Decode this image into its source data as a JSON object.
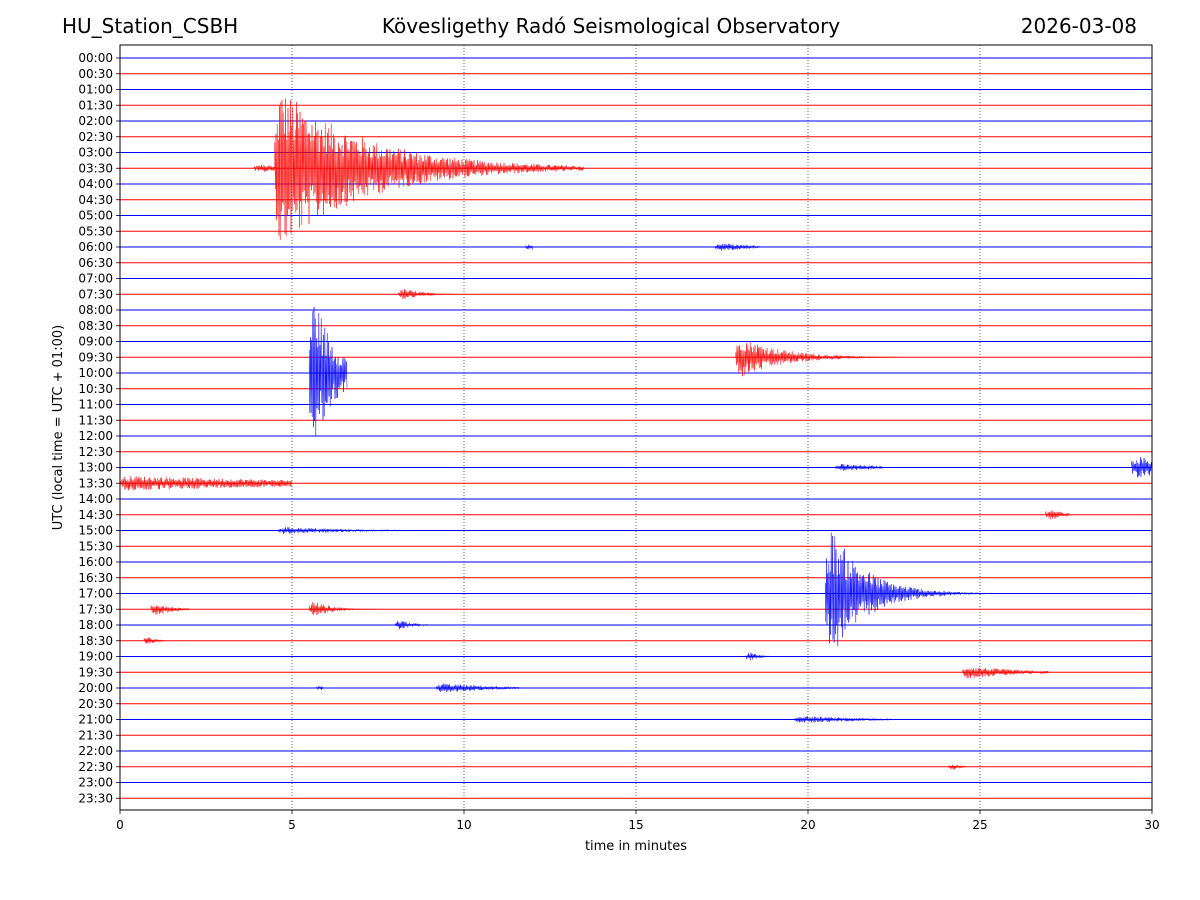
{
  "header": {
    "station": "HU_Station_CSBH",
    "observatory": "Kövesligethy Radó Seismological Observatory",
    "date": "2026-03-08"
  },
  "chart_data": {
    "type": "line",
    "title": "Kövesligethy Radó Seismological Observatory",
    "xlabel": "time in minutes",
    "ylabel": "UTC (local time = UTC + 01:00)",
    "xlim": [
      0,
      30
    ],
    "xticks": [
      0,
      5,
      10,
      15,
      20,
      25,
      30
    ],
    "vertical_gridlines_at": [
      5,
      10,
      15,
      20,
      25
    ],
    "row_colors": [
      "#0000ff",
      "#ff0000"
    ],
    "rows": [
      "00:00",
      "00:30",
      "01:00",
      "01:30",
      "02:00",
      "02:30",
      "03:00",
      "03:30",
      "04:00",
      "04:30",
      "05:00",
      "05:30",
      "06:00",
      "06:30",
      "07:00",
      "07:30",
      "08:00",
      "08:30",
      "09:00",
      "09:30",
      "10:00",
      "10:30",
      "11:00",
      "11:30",
      "12:00",
      "12:30",
      "13:00",
      "13:30",
      "14:00",
      "14:30",
      "15:00",
      "15:30",
      "16:00",
      "16:30",
      "17:00",
      "17:30",
      "18:00",
      "18:30",
      "19:00",
      "19:30",
      "20:00",
      "20:30",
      "21:00",
      "21:30",
      "22:00",
      "22:30",
      "23:00",
      "23:30"
    ],
    "events": [
      {
        "row": "03:30",
        "start": 4.5,
        "end": 13.5,
        "amplitude": 5.5,
        "decay": 2.5
      },
      {
        "row": "03:30",
        "start": 3.9,
        "end": 4.5,
        "amplitude": 0.3,
        "decay": 1.0
      },
      {
        "row": "06:00",
        "start": 11.8,
        "end": 12.0,
        "amplitude": 0.25,
        "decay": 0.5
      },
      {
        "row": "06:00",
        "start": 17.3,
        "end": 18.6,
        "amplitude": 0.3,
        "decay": 1.0
      },
      {
        "row": "07:30",
        "start": 8.1,
        "end": 9.7,
        "amplitude": 0.45,
        "decay": 0.6
      },
      {
        "row": "09:30",
        "start": 17.9,
        "end": 22.6,
        "amplitude": 1.5,
        "decay": 1.2
      },
      {
        "row": "10:00",
        "start": 5.5,
        "end": 6.6,
        "amplitude": 6.5,
        "decay": 0.6
      },
      {
        "row": "13:00",
        "start": 20.8,
        "end": 22.2,
        "amplitude": 0.25,
        "decay": 1.5
      },
      {
        "row": "13:00",
        "start": 29.4,
        "end": 30.0,
        "amplitude": 0.9,
        "decay": 1.0
      },
      {
        "row": "13:30",
        "start": 0.0,
        "end": 5.0,
        "amplitude": 0.5,
        "decay": 6.0
      },
      {
        "row": "14:30",
        "start": 26.9,
        "end": 27.6,
        "amplitude": 0.55,
        "decay": 0.4
      },
      {
        "row": "15:00",
        "start": 4.6,
        "end": 8.2,
        "amplitude": 0.25,
        "decay": 2.0
      },
      {
        "row": "17:00",
        "start": 20.5,
        "end": 26.5,
        "amplitude": 5.0,
        "decay": 1.0
      },
      {
        "row": "17:30",
        "start": 0.9,
        "end": 2.0,
        "amplitude": 0.55,
        "decay": 0.5
      },
      {
        "row": "17:30",
        "start": 5.5,
        "end": 7.5,
        "amplitude": 0.7,
        "decay": 0.5
      },
      {
        "row": "18:00",
        "start": 8.0,
        "end": 9.0,
        "amplitude": 0.45,
        "decay": 0.4
      },
      {
        "row": "18:30",
        "start": 0.7,
        "end": 1.3,
        "amplitude": 0.35,
        "decay": 0.3
      },
      {
        "row": "19:00",
        "start": 18.2,
        "end": 18.9,
        "amplitude": 0.4,
        "decay": 0.3
      },
      {
        "row": "19:30",
        "start": 24.5,
        "end": 27.0,
        "amplitude": 0.45,
        "decay": 1.5
      },
      {
        "row": "20:00",
        "start": 9.2,
        "end": 11.6,
        "amplitude": 0.35,
        "decay": 1.5
      },
      {
        "row": "20:00",
        "start": 5.7,
        "end": 5.9,
        "amplitude": 0.2,
        "decay": 0.5
      },
      {
        "row": "21:00",
        "start": 19.6,
        "end": 22.5,
        "amplitude": 0.25,
        "decay": 2.0
      },
      {
        "row": "22:30",
        "start": 24.1,
        "end": 24.6,
        "amplitude": 0.3,
        "decay": 0.3
      }
    ]
  }
}
